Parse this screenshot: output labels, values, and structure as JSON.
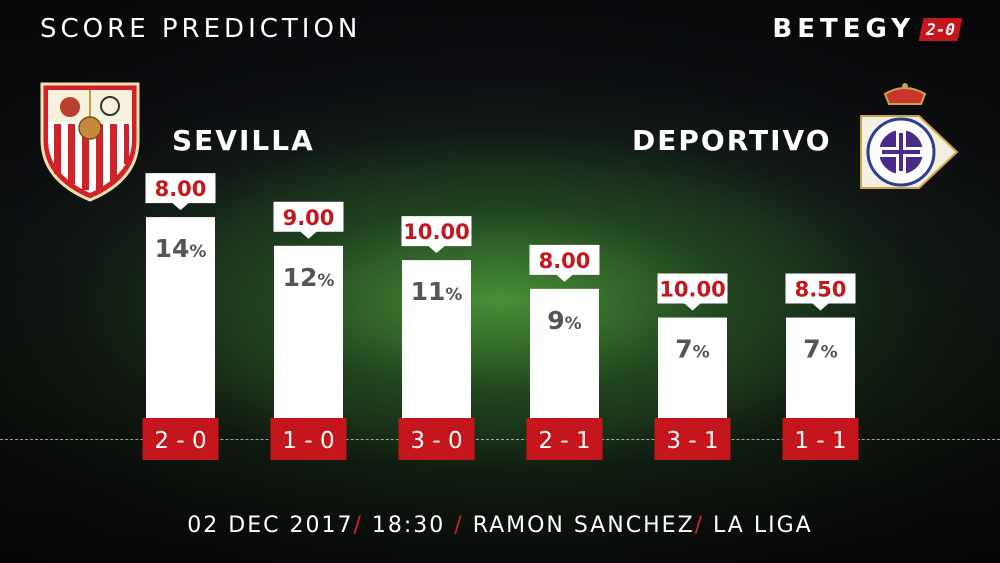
{
  "header": {
    "title": "SCORE PREDICTION",
    "brand": "BETEGY",
    "brand_badge": "2-0"
  },
  "teams": {
    "home": "SEVILLA",
    "away": "DEPORTIVO"
  },
  "colors": {
    "accent": "#c4161c",
    "bar": "#ffffff",
    "odds_text": "#c4161c",
    "percent_text": "#555555"
  },
  "chart_data": {
    "type": "bar",
    "categories": [
      "2 - 0",
      "1 - 0",
      "3 - 0",
      "2 - 1",
      "3 - 1",
      "1 - 1"
    ],
    "values": [
      14,
      12,
      11,
      9,
      7,
      7
    ],
    "value_labels": [
      "14%",
      "12%",
      "11%",
      "9%",
      "7%",
      "7%"
    ],
    "odds": [
      "8.00",
      "9.00",
      "10.00",
      "8.00",
      "10.00",
      "8.50"
    ],
    "title": "SCORE PREDICTION",
    "unit": "%",
    "grid": false
  },
  "footer": {
    "date": "02 DEC 2017",
    "time": "18:30",
    "venue": "RAMON SANCHEZ",
    "competition": "LA LIGA"
  }
}
